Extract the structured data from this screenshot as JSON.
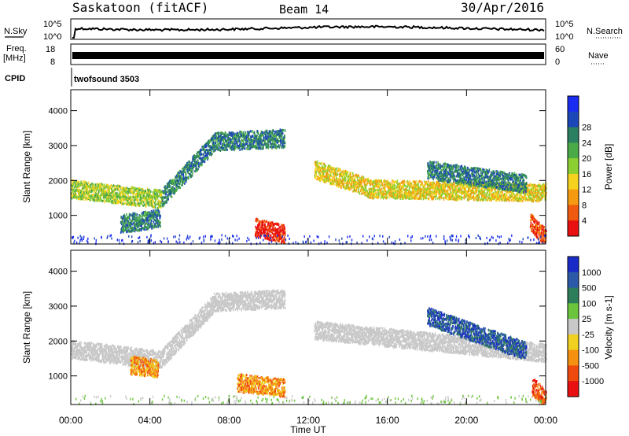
{
  "header": {
    "title": "Saskatoon (fitACF)",
    "beam": "Beam 14",
    "date": "30/Apr/2016"
  },
  "top_panels": {
    "nsky_label": "N.Sky",
    "nsky_tick_top": "10^5",
    "nsky_tick_bottom": "10^0",
    "nsearch_label": "N.Search",
    "nsearch_tick_top": "10^5",
    "nsearch_tick_bottom": "10^0",
    "freq_label": "Freq.",
    "freq_unit": "[MHz]",
    "freq_tick_top": "18",
    "freq_tick_bottom": "8",
    "nave_label": "Nave",
    "nave_tick_top": "60",
    "nave_tick_bottom": "0",
    "cpid_label": "CPID",
    "cpid_value": "twofsound 3503"
  },
  "colors": {
    "trace": "#000000",
    "ground_scatter": "#c8c8c8"
  },
  "chart_data": [
    {
      "type": "heatmap",
      "name": "power",
      "ylabel": "Slant Range [km]",
      "ylim": [
        180,
        4600
      ],
      "yticks": [
        "1000",
        "2000",
        "3000",
        "4000"
      ],
      "xlim": [
        0,
        24
      ],
      "xticks": [
        "00:00",
        "04:00",
        "08:00",
        "12:00",
        "16:00",
        "20:00",
        "00:00"
      ],
      "colorbar_label": "Power [dB]",
      "colorbar_ticks": [
        "4",
        "8",
        "12",
        "16",
        "20",
        "24",
        "28"
      ],
      "colorbar_colors": [
        "#1a2cf0",
        "#1c47b8",
        "#2a7f60",
        "#4aaa48",
        "#8ccf30",
        "#f5d21e",
        "#f59a10",
        "#ef5a0e",
        "#e81010"
      ],
      "bands": [
        {
          "t0": 0.0,
          "t1": 4.6,
          "r0": 1750,
          "r1": 1450,
          "level": 4
        },
        {
          "t0": 4.6,
          "t1": 7.2,
          "r0": 1500,
          "r1": 3050,
          "level": 2
        },
        {
          "t0": 7.2,
          "t1": 10.8,
          "r0": 3100,
          "r1": 3200,
          "level": 2
        },
        {
          "t0": 12.3,
          "t1": 15.0,
          "r0": 2300,
          "r1": 1800,
          "level": 5
        },
        {
          "t0": 15.0,
          "t1": 24.0,
          "r0": 1750,
          "r1": 1650,
          "level": 5
        },
        {
          "t0": 18.0,
          "t1": 23.0,
          "r0": 2300,
          "r1": 1900,
          "level": 2
        },
        {
          "t0": 9.3,
          "t1": 10.8,
          "r0": 650,
          "r1": 450,
          "level": 8
        },
        {
          "t0": 23.2,
          "t1": 24.0,
          "r0": 800,
          "r1": 350,
          "level": 7
        },
        {
          "t0": 2.5,
          "t1": 4.5,
          "r0": 750,
          "r1": 900,
          "level": 2
        }
      ]
    },
    {
      "type": "heatmap",
      "name": "velocity",
      "ylabel": "Slant Range [km]",
      "ylim": [
        180,
        4600
      ],
      "yticks": [
        "1000",
        "2000",
        "3000",
        "4000"
      ],
      "xlim": [
        0,
        24
      ],
      "xticks": [
        "00:00",
        "04:00",
        "08:00",
        "12:00",
        "16:00",
        "20:00",
        "00:00"
      ],
      "xlabel": "Time UT",
      "colorbar_label": "Velocity [m s-1]",
      "colorbar_ticks": [
        "1000",
        "500",
        "100",
        "25",
        "-25",
        "-100",
        "-500",
        "-1000"
      ],
      "colorbar_colors": [
        "#1a2cc8",
        "#2c5aa8",
        "#2e7d5a",
        "#6cc43c",
        "#c8c8c8",
        "#f0d020",
        "#f59010",
        "#ef4a0e",
        "#e81010"
      ],
      "bands": [
        {
          "t0": 0.0,
          "t1": 4.6,
          "r0": 1750,
          "r1": 1450,
          "level": 4
        },
        {
          "t0": 4.6,
          "t1": 7.2,
          "r0": 1500,
          "r1": 3050,
          "level": 4
        },
        {
          "t0": 7.2,
          "t1": 10.8,
          "r0": 3100,
          "r1": 3200,
          "level": 4
        },
        {
          "t0": 12.3,
          "t1": 24.0,
          "r0": 2300,
          "r1": 1650,
          "level": 4
        },
        {
          "t0": 18.0,
          "t1": 23.0,
          "r0": 2700,
          "r1": 1700,
          "level": 1
        },
        {
          "t0": 8.4,
          "t1": 10.8,
          "r0": 800,
          "r1": 650,
          "level": 6
        },
        {
          "t0": 3.0,
          "t1": 4.4,
          "r0": 1300,
          "r1": 1200,
          "level": 6
        },
        {
          "t0": 23.3,
          "t1": 24.0,
          "r0": 700,
          "r1": 350,
          "level": 7
        }
      ]
    }
  ]
}
